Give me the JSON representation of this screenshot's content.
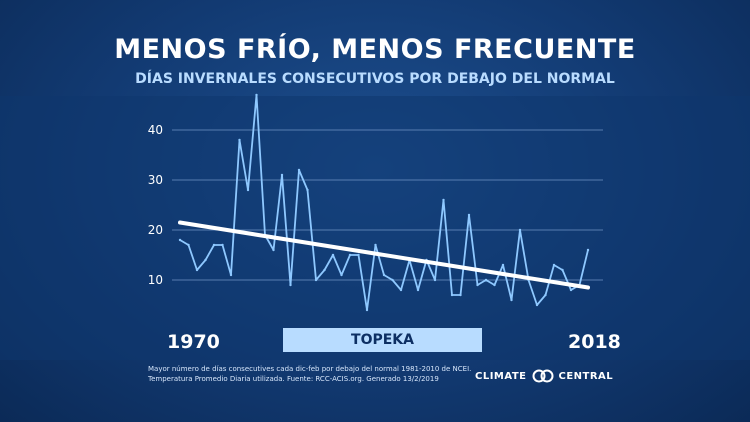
{
  "header": {
    "title": "MENOS FRÍO, MENOS FRECUENTE",
    "subtitle": "DÍAS INVERNALES CONSECUTIVOS POR DEBAJO DEL NORMAL"
  },
  "labels": {
    "year_start": "1970",
    "year_end": "2018",
    "station": "TOPEKA"
  },
  "footnote": {
    "line1": "Mayor número de días consecutives cada dic-feb por debajo del normal 1981-2010 de NCEI.",
    "line2": "Temperatura Promedio Diaria utilizada. Fuente: RCC-ACIS.org. Generado 13/2/2019"
  },
  "logo": {
    "left_word": "CLIMATE",
    "right_word": "CENTRAL",
    "icon": "climate-central-rings-icon"
  },
  "colors": {
    "series_line": "#8ec8ff",
    "trend_line": "#ffffff",
    "gridline": "#6f93c4",
    "station_bar": "#b8dcff"
  },
  "chart_data": {
    "type": "line",
    "title": "MENOS FRÍO, MENOS FRECUENTE",
    "subtitle": "DÍAS INVERNALES CONSECUTIVOS POR DEBAJO DEL NORMAL",
    "xlabel": "",
    "ylabel": "",
    "x_range": [
      1970,
      2018
    ],
    "ylim": [
      0,
      48
    ],
    "y_ticks": [
      10,
      20,
      30,
      40
    ],
    "grid": true,
    "x": [
      1970,
      1971,
      1972,
      1973,
      1974,
      1975,
      1976,
      1977,
      1978,
      1979,
      1980,
      1981,
      1982,
      1983,
      1984,
      1985,
      1986,
      1987,
      1988,
      1989,
      1990,
      1991,
      1992,
      1993,
      1994,
      1995,
      1996,
      1997,
      1998,
      1999,
      2000,
      2001,
      2002,
      2003,
      2004,
      2005,
      2006,
      2007,
      2008,
      2009,
      2010,
      2011,
      2012,
      2013,
      2014,
      2015,
      2016,
      2017,
      2018
    ],
    "series": [
      {
        "values": [
          18,
          17,
          12,
          14,
          17,
          17,
          11,
          38,
          28,
          47,
          19,
          16,
          31,
          9,
          32,
          28,
          10,
          12,
          15,
          11,
          15,
          15,
          4,
          17,
          11,
          10,
          8,
          14,
          8,
          14,
          10,
          26,
          7,
          7,
          23,
          9,
          10,
          9,
          13,
          6,
          20,
          10,
          5,
          7,
          13,
          12,
          8,
          9,
          16
        ]
      },
      {
        "type": "trend",
        "start": [
          1970,
          21.5
        ],
        "end": [
          2018,
          8.5
        ]
      }
    ]
  }
}
